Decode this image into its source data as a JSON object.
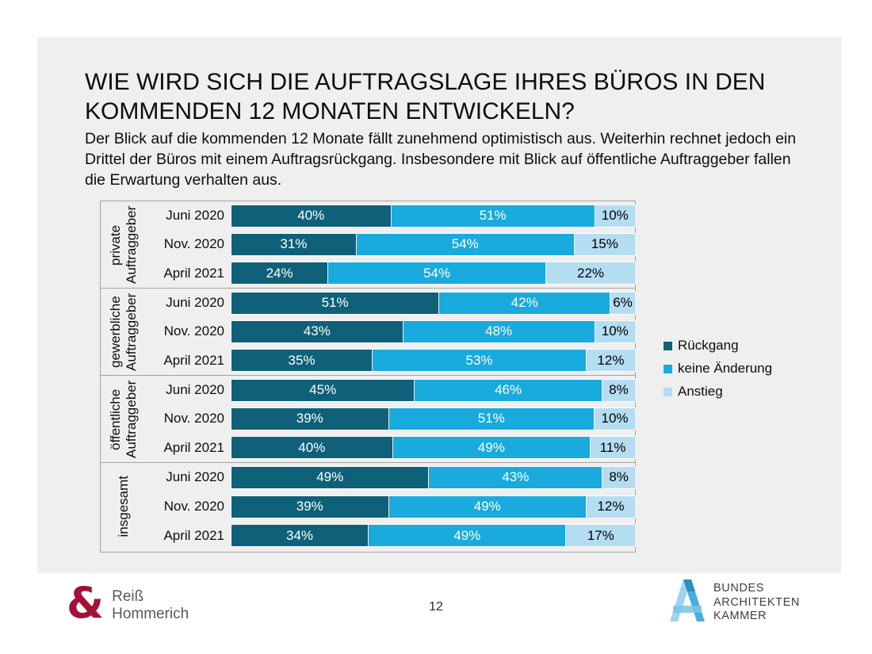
{
  "slide": {
    "title": "WIE WIRD SICH DIE AUFTRAGSLAGE IHRES BÜROS IN DEN KOMMENDEN 12 MONATEN ENTWICKELN?",
    "subtitle": "Der Blick auf die kommenden 12 Monate fällt zunehmend optimistisch aus. Weiterhin rechnet jedoch ein Drittel der Büros mit einem Auftragsrückgang. Insbesondere mit Blick auf öffentliche Auftraggeber fallen die Erwartung verhalten aus."
  },
  "chart_data": {
    "type": "bar",
    "orientation": "horizontal",
    "stacked": true,
    "unit": "%",
    "grid": "group separators only",
    "legend_position": "right",
    "series_names": [
      "Rückgang",
      "keine Änderung",
      "Anstieg"
    ],
    "series_colors": [
      "#0e6178",
      "#19aade",
      "#b5ddf2"
    ],
    "series_label_colors": [
      "#ffffff",
      "#ffffff",
      "#000000"
    ],
    "groups": [
      {
        "label": "private Auftraggeber",
        "rows": [
          {
            "label": "Juni 2020",
            "values": [
              40,
              51,
              10
            ]
          },
          {
            "label": "Nov. 2020",
            "values": [
              31,
              54,
              15
            ]
          },
          {
            "label": "April 2021",
            "values": [
              24,
              54,
              22
            ]
          }
        ]
      },
      {
        "label": "gewerbliche Auftraggeber",
        "rows": [
          {
            "label": "Juni 2020",
            "values": [
              51,
              42,
              6
            ]
          },
          {
            "label": "Nov. 2020",
            "values": [
              43,
              48,
              10
            ]
          },
          {
            "label": "April 2021",
            "values": [
              35,
              53,
              12
            ]
          }
        ]
      },
      {
        "label": "öffentliche Auftraggeber",
        "rows": [
          {
            "label": "Juni 2020",
            "values": [
              45,
              46,
              8
            ]
          },
          {
            "label": "Nov. 2020",
            "values": [
              39,
              51,
              10
            ]
          },
          {
            "label": "April 2021",
            "values": [
              40,
              49,
              11
            ]
          }
        ]
      },
      {
        "label": "insgesamt",
        "rows": [
          {
            "label": "Juni 2020",
            "values": [
              49,
              43,
              8
            ]
          },
          {
            "label": "Nov. 2020",
            "values": [
              39,
              49,
              12
            ]
          },
          {
            "label": "April 2021",
            "values": [
              34,
              49,
              17
            ]
          }
        ]
      }
    ]
  },
  "legend": {
    "items": [
      {
        "label": "Rückgang",
        "color": "#0e6178"
      },
      {
        "label": "keine Änderung",
        "color": "#19aade"
      },
      {
        "label": "Anstieg",
        "color": "#b5ddf2"
      }
    ]
  },
  "footer": {
    "left_logo": {
      "symbol": "&",
      "symbol_color": "#a31138",
      "line1": "Reiß",
      "line2": "Hommerich"
    },
    "page_number": "12",
    "right_logo": {
      "lines": [
        "BUNDES",
        "ARCHITEKTEN",
        "KAMMER"
      ]
    }
  }
}
